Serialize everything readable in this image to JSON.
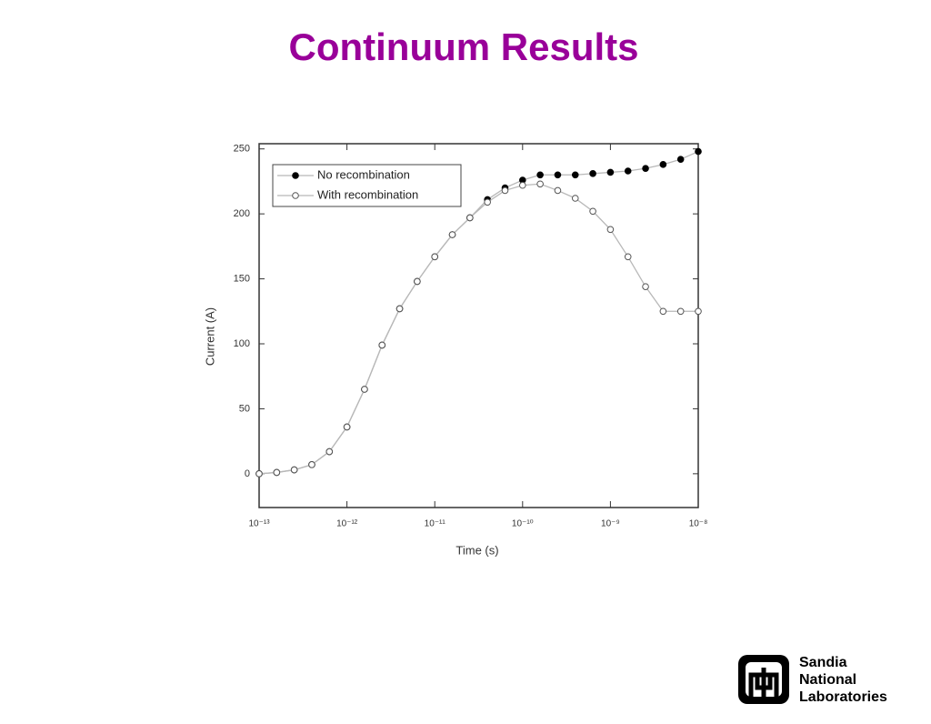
{
  "slide": {
    "title": "Continuum Results"
  },
  "logo": {
    "lines": [
      "Sandia",
      "National",
      "Laboratories"
    ]
  },
  "chart_data": {
    "type": "line",
    "x_label": "Time (s)",
    "y_label": "Current (A)",
    "xscale": "log",
    "xlim": [
      1e-13,
      1e-08
    ],
    "ylim": [
      -26,
      254
    ],
    "xticks": [
      {
        "value": 1e-13,
        "label": "10⁻¹³"
      },
      {
        "value": 1e-12,
        "label": "10⁻¹²"
      },
      {
        "value": 1e-11,
        "label": "10⁻¹¹"
      },
      {
        "value": 1e-10,
        "label": "10⁻¹⁰"
      },
      {
        "value": 1e-09,
        "label": "10⁻⁹"
      },
      {
        "value": 1e-08,
        "label": "10⁻⁸"
      }
    ],
    "yticks": [
      0,
      50,
      100,
      150,
      200,
      250
    ],
    "line_color": "#b8b8b8",
    "legend": "upper left",
    "x": [
      1e-13,
      1.585e-13,
      2.512e-13,
      3.981e-13,
      6.31e-13,
      1e-12,
      1.585e-12,
      2.512e-12,
      3.981e-12,
      6.31e-12,
      1e-11,
      1.585e-11,
      2.512e-11,
      3.981e-11,
      6.31e-11,
      1e-10,
      1.585e-10,
      2.512e-10,
      3.981e-10,
      6.31e-10,
      1e-09,
      1.585e-09,
      2.512e-09,
      3.981e-09,
      6.31e-09,
      1e-08
    ],
    "series": [
      {
        "name": "No recombination",
        "color": "#000000",
        "marker": "filled",
        "values": [
          0,
          1,
          3,
          7,
          17,
          36,
          65,
          99,
          127,
          148,
          167,
          184,
          197,
          211,
          220,
          226,
          230,
          230,
          230,
          231,
          232,
          233,
          235,
          238,
          242,
          248
        ]
      },
      {
        "name": "With recombination",
        "color": "#555555",
        "marker": "open",
        "values": [
          0,
          1,
          3,
          7,
          17,
          36,
          65,
          99,
          127,
          148,
          167,
          184,
          197,
          209,
          218,
          222,
          223,
          218,
          212,
          202,
          188,
          167,
          144,
          125,
          125,
          125
        ]
      }
    ]
  }
}
